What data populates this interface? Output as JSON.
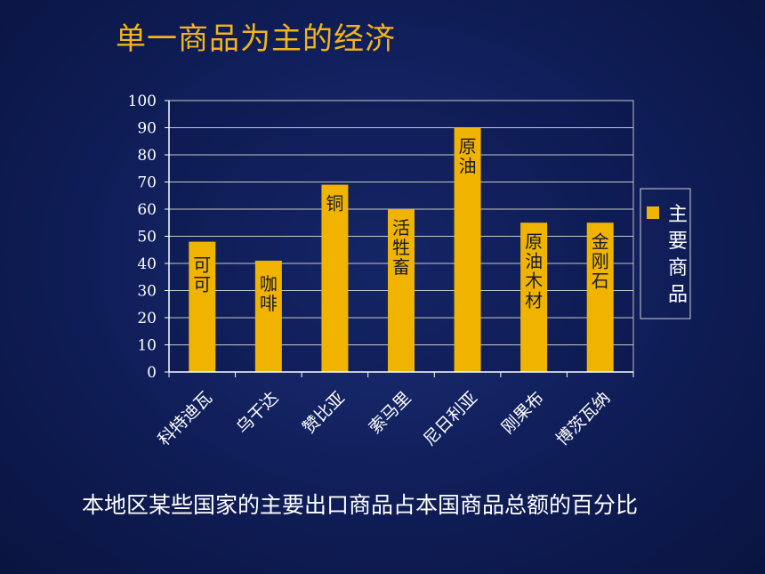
{
  "slide": {
    "title": "单一商品为主的经济",
    "caption": "本地区某些国家的主要出口商品占本国商品总额的百分比"
  },
  "colors": {
    "bar": "#f0b400",
    "grid": "#c8c8c8",
    "axis": "#ffffff",
    "title": "#f3b419"
  },
  "chart_data": {
    "type": "bar",
    "title": "",
    "xlabel": "",
    "ylabel": "",
    "ylim": [
      0,
      100
    ],
    "yticks": [
      0,
      10,
      20,
      30,
      40,
      50,
      60,
      70,
      80,
      90,
      100
    ],
    "grid": true,
    "legend_position": "right",
    "categories": [
      "科特迪瓦",
      "乌干达",
      "赞比亚",
      "索马里",
      "尼日利亚",
      "刚果布",
      "博茨瓦纳"
    ],
    "series": [
      {
        "name": "主要商品",
        "values": [
          48,
          41,
          69,
          60,
          90,
          55,
          55
        ],
        "data_labels": [
          "可可",
          "咖啡",
          "铜",
          "活牲畜",
          "原油",
          "原油木材",
          "金刚石"
        ]
      }
    ]
  }
}
